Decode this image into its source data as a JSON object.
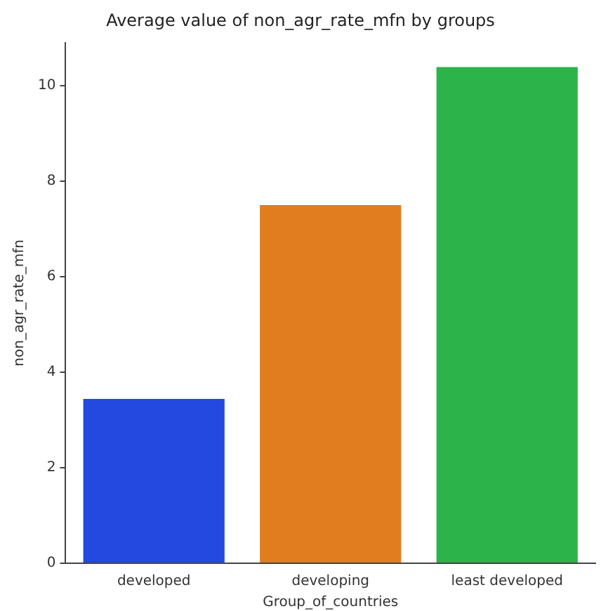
{
  "chart_data": {
    "type": "bar",
    "title": "Average value of non_agr_rate_mfn by groups",
    "xlabel": "Group_of_countries",
    "ylabel": "non_agr_rate_mfn",
    "categories": [
      "developed",
      "developing",
      "least developed"
    ],
    "values": [
      3.44,
      7.5,
      10.39
    ],
    "colors": [
      "#2349e0",
      "#e17d1f",
      "#2cb34a"
    ],
    "ylim": [
      0,
      10.9
    ],
    "yticks": [
      0,
      2,
      4,
      6,
      8,
      10
    ],
    "grid": false,
    "legend": false
  }
}
